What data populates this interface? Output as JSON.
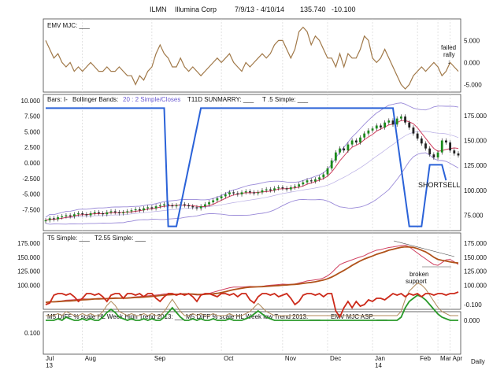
{
  "header": {
    "symbol": "ILMN",
    "name": "Illumina Corp",
    "range": "7/9/13 - 4/10/14",
    "last": "135.740",
    "change": "-10.100"
  },
  "colors": {
    "emv": "#a07848",
    "price_up": "#1a8a1a",
    "price_down": "#222222",
    "bollinger": "#9a8ad8",
    "t11d": "#2a62d8",
    "t5": "#d04060",
    "avg_brown": "#b0521a",
    "green": "#2a9a2a",
    "red": "#cc2a1a",
    "tan": "#b08a5a",
    "grid": "#cfcfcf"
  },
  "x_labels": [
    {
      "text": "Jul",
      "year": "13"
    },
    {
      "text": "Aug"
    },
    {
      "text": "Sep"
    },
    {
      "text": "Oct"
    },
    {
      "text": "Nov"
    },
    {
      "text": "Dec"
    },
    {
      "text": "Jan",
      "year": "14"
    },
    {
      "text": "Feb"
    },
    {
      "text": "Mar"
    },
    {
      "text": "Apr"
    }
  ],
  "x_corner_label": "Daily",
  "chart_data": [
    {
      "panel": "emv",
      "type": "line",
      "legend": "EMV MJC: ___",
      "y_ticks": [
        "5.000",
        "0.000",
        "-5.000"
      ],
      "ylim": [
        -6,
        9
      ],
      "series": [
        {
          "values": [
            5,
            3,
            1,
            2,
            0,
            -1,
            0,
            -2,
            -1,
            -2,
            -1,
            0,
            -1,
            -2,
            -2,
            -1,
            -2,
            -2,
            -1,
            -2,
            -3,
            -3,
            -5,
            -3,
            -4,
            -2,
            -1,
            2,
            4,
            2,
            1,
            -1,
            -1,
            1,
            -1,
            -2,
            -1,
            -2,
            -3,
            -2,
            -1,
            0,
            1,
            0,
            1,
            2,
            0,
            -1,
            -2,
            0,
            -1,
            0,
            1,
            2,
            1,
            2,
            4,
            5,
            5,
            3,
            1,
            3,
            7,
            8,
            7,
            4,
            6,
            5,
            3,
            1,
            1,
            -1,
            2,
            -1,
            2,
            1,
            1,
            3,
            6,
            5,
            1,
            0,
            1,
            3,
            1,
            -1,
            -3,
            -5,
            -6,
            -5,
            -3,
            -2,
            -1,
            -2,
            -1,
            0,
            -1,
            -3,
            -2,
            0,
            -1,
            -2
          ]
        }
      ],
      "annotations": [
        {
          "text": "failed",
          "line": 1
        },
        {
          "text": "rally",
          "line": 2
        },
        {
          "text": "↓",
          "line": 3
        }
      ]
    },
    {
      "panel": "price",
      "type": "candlestick",
      "legend_bars": "Bars: I-",
      "legend_bb": "Bollinger Bands: ",
      "legend_bb_param": "20 : 2 Simple/Closes",
      "legend_t11d": "T11D SUNMARRY: ___",
      "legend_t5": "T .5 Simple: ___",
      "left_ticks": [
        "10.000",
        "7.500",
        "5.000",
        "2.500",
        "0.000",
        "-2.500",
        "-5.000",
        "-7.500"
      ],
      "right_ticks": [
        "175.000",
        "150.000",
        "125.000",
        "100.000",
        "75.000"
      ],
      "left_range": [
        -10.5,
        10.5
      ],
      "right_range": [
        62,
        193
      ],
      "closes": [
        70,
        72,
        71,
        73,
        74,
        75,
        74,
        76,
        77,
        76,
        75,
        77,
        78,
        77,
        76,
        78,
        79,
        78,
        77,
        78,
        79,
        80,
        81,
        80,
        82,
        83,
        82,
        84,
        85,
        86,
        85,
        84,
        85,
        86,
        85,
        84,
        83,
        82,
        84,
        86,
        88,
        90,
        92,
        94,
        96,
        98,
        97,
        96,
        98,
        99,
        98,
        97,
        98,
        100,
        101,
        100,
        102,
        103,
        102,
        101,
        103,
        104,
        106,
        108,
        110,
        109,
        111,
        113,
        116,
        122,
        130,
        138,
        142,
        140,
        146,
        150,
        148,
        153,
        157,
        160,
        162,
        165,
        163,
        168,
        170,
        166,
        172,
        174,
        168,
        163,
        157,
        152,
        147,
        142,
        136,
        133,
        138,
        150,
        148,
        140,
        137,
        135
      ],
      "t11d_points": [
        [
          0,
          8.8
        ],
        [
          29,
          8.8
        ],
        [
          30,
          -10.2
        ],
        [
          32,
          -10.2
        ],
        [
          38,
          8.8
        ],
        [
          85,
          8.8
        ],
        [
          89,
          -10.2
        ],
        [
          92,
          -10.2
        ],
        [
          94,
          -0.3
        ],
        [
          97,
          -0.3
        ],
        [
          98,
          -2.8
        ]
      ],
      "shortsell_label": "SHORTSELL"
    },
    {
      "panel": "averages",
      "type": "line",
      "legend_t5": "T5 Simple: ___",
      "legend_t255": "T2.55 Simple: ___",
      "left_ticks": [
        "175.000",
        "150.000",
        "125.000",
        "100.000"
      ],
      "right_ticks": [
        "175.000",
        "150.000",
        "125.000",
        "100.000"
      ],
      "ylim": [
        62,
        190
      ],
      "annotations": [
        {
          "text": "broken",
          "line": 1
        },
        {
          "text": "support",
          "line": 2
        }
      ]
    },
    {
      "panel": "diff",
      "type": "line",
      "legend_high": "M5 DIFF % scale HL Week High Trend 2013: ___",
      "legend_low": "M5 DIFF % scale HL Week low Trend 2013: ___",
      "legend_emv": "EMV MJC ASP: ___",
      "left_ticks": [
        "0.100"
      ],
      "right_ticks": [
        "0.000",
        "-0.100"
      ],
      "green_values": [
        0.0,
        0.0,
        0.0,
        -0.01,
        0.0,
        -0.02,
        -0.01,
        0.0,
        0.0,
        -0.01,
        0.0,
        -0.01,
        0.0,
        0.0,
        -0.02,
        -0.05,
        -0.07,
        -0.05,
        -0.02,
        -0.01,
        0.0,
        -0.01,
        0.0,
        0.0,
        -0.01,
        0.0,
        -0.01,
        0.0,
        0.0,
        -0.02,
        -0.05,
        -0.08,
        -0.05,
        -0.02,
        0.0,
        0.0,
        -0.01,
        0.0,
        -0.01,
        0.0,
        0.0,
        -0.01,
        0.0,
        0.0,
        0.0,
        -0.01,
        0.0,
        0.0,
        0.0,
        -0.01,
        -0.02,
        -0.04,
        -0.06,
        -0.04,
        -0.02,
        -0.01,
        0.0,
        0.0,
        0.0,
        0.0,
        0.0,
        0.0,
        0.0,
        0.0,
        0.0,
        0.0,
        0.0,
        0.0,
        0.0,
        0.0,
        0.0,
        0.0,
        0.0,
        0.0,
        0.0,
        0.0,
        0.0,
        0.0,
        0.0,
        0.0,
        0.0,
        0.0,
        0.0,
        0.0,
        0.0,
        0.0,
        0.0,
        -0.02,
        -0.08,
        -0.12,
        -0.14,
        -0.16,
        -0.15,
        -0.13,
        -0.1,
        -0.07,
        -0.04,
        -0.02,
        -0.01,
        0.0,
        0.0,
        0.0
      ],
      "red_values": [
        -0.1,
        -0.11,
        -0.16,
        -0.17,
        -0.17,
        -0.16,
        -0.17,
        -0.15,
        -0.12,
        -0.14,
        -0.17,
        -0.17,
        -0.16,
        -0.17,
        -0.15,
        -0.12,
        -0.16,
        -0.17,
        -0.17,
        -0.14,
        -0.17,
        -0.17,
        -0.16,
        -0.17,
        -0.15,
        -0.17,
        -0.17,
        -0.14,
        -0.12,
        -0.15,
        -0.17,
        -0.17,
        -0.16,
        -0.17,
        -0.16,
        -0.17,
        -0.15,
        -0.12,
        -0.16,
        -0.17,
        -0.17,
        -0.16,
        -0.15,
        -0.17,
        -0.17,
        -0.16,
        -0.17,
        -0.15,
        -0.17,
        -0.17,
        -0.13,
        -0.11,
        -0.15,
        -0.17,
        -0.17,
        -0.16,
        -0.17,
        -0.15,
        -0.16,
        -0.17,
        -0.14,
        -0.1,
        -0.12,
        -0.16,
        -0.17,
        -0.17,
        -0.16,
        -0.17,
        -0.15,
        -0.17,
        -0.17,
        -0.06,
        -0.02,
        -0.08,
        -0.12,
        -0.08,
        -0.12,
        -0.09,
        -0.1,
        -0.13,
        -0.12,
        -0.14,
        -0.14,
        -0.13,
        -0.15,
        -0.17,
        -0.16,
        -0.17,
        -0.15,
        -0.17,
        -0.16,
        -0.17,
        -0.15,
        -0.17,
        -0.17,
        -0.16,
        -0.17,
        -0.17,
        -0.16,
        -0.17,
        -0.17,
        -0.18
      ]
    }
  ]
}
